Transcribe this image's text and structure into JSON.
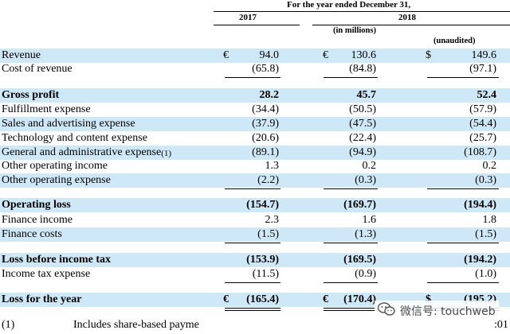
{
  "header": {
    "period_title": "For the year ended December 31,",
    "year_2017": "2017",
    "year_2018": "2018",
    "units": "(in millions)",
    "unaudited": "(unaudited)"
  },
  "rows": [
    {
      "label": "Revenue",
      "cur1": "€",
      "v2017": "94.0",
      "cur2": "€",
      "v2018_eur": "130.6",
      "cur3": "$",
      "v2018_usd": "149.6"
    },
    {
      "label": "Cost of revenue",
      "v2017": "(65.8)",
      "v2018_eur": "(84.8)",
      "v2018_usd": "(97.1)"
    },
    {
      "label": "Gross profit",
      "v2017": "28.2",
      "v2018_eur": "45.7",
      "v2018_usd": "52.4"
    },
    {
      "label": "Fulfillment expense",
      "v2017": "(34.4)",
      "v2018_eur": "(50.5)",
      "v2018_usd": "(57.9)"
    },
    {
      "label": "Sales and advertising expense",
      "v2017": "(37.9)",
      "v2018_eur": "(47.5)",
      "v2018_usd": "(54.4)"
    },
    {
      "label": "Technology and content expense",
      "v2017": "(20.6)",
      "v2018_eur": "(22.4)",
      "v2018_usd": "(25.7)"
    },
    {
      "label": "General and administrative expense",
      "footnote": "(1)",
      "v2017": "(89.1)",
      "v2018_eur": "(94.9)",
      "v2018_usd": "(108.7)"
    },
    {
      "label": "Other operating income",
      "v2017": "1.3",
      "v2018_eur": "0.2",
      "v2018_usd": "0.2"
    },
    {
      "label": "Other operating expense",
      "v2017": "(2.2)",
      "v2018_eur": "(0.3)",
      "v2018_usd": "(0.3)"
    },
    {
      "label": "Operating loss",
      "v2017": "(154.7)",
      "v2018_eur": "(169.7)",
      "v2018_usd": "(194.4)"
    },
    {
      "label": "Finance income",
      "v2017": "2.3",
      "v2018_eur": "1.6",
      "v2018_usd": "1.8"
    },
    {
      "label": "Finance costs",
      "v2017": "(1.5)",
      "v2018_eur": "(1.3)",
      "v2018_usd": "(1.5)"
    },
    {
      "label": "Loss before income tax",
      "v2017": "(153.9)",
      "v2018_eur": "(169.5)",
      "v2018_usd": "(194.2)"
    },
    {
      "label": "Income tax expense",
      "v2017": "(11.5)",
      "v2018_eur": "(0.9)",
      "v2018_usd": "(1.0)"
    },
    {
      "label": "Loss for the year",
      "cur1": "€",
      "v2017": "(165.4)",
      "cur2": "€",
      "v2018_eur": "(170.4)",
      "cur3": "$",
      "v2018_usd": "(195.2)"
    }
  ],
  "footnote": {
    "marker": "(1)",
    "text": "Includes share-based payme",
    "right_fragment": ":01"
  },
  "watermark": {
    "text": "微信号: touchweb",
    "icon": "wechat-icon"
  },
  "colors": {
    "row_shade": "#cfe8f7"
  }
}
